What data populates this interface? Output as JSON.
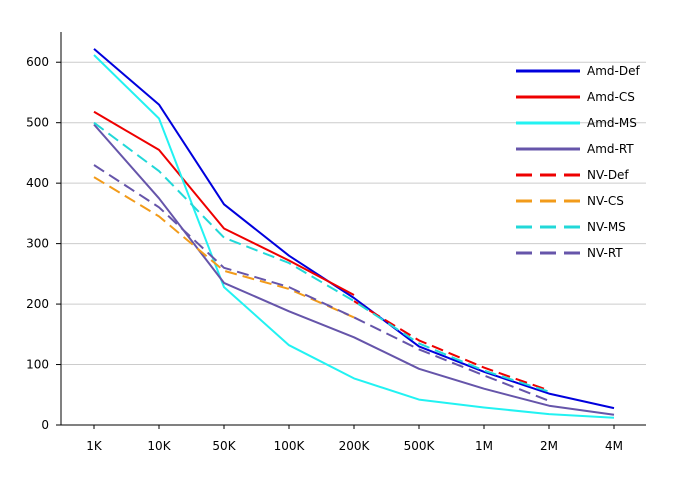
{
  "chart_data": {
    "type": "line",
    "categories": [
      "1K",
      "10K",
      "50K",
      "100K",
      "200K",
      "500K",
      "1M",
      "2M",
      "4M"
    ],
    "ylim": [
      0,
      650
    ],
    "yticks": [
      0,
      100,
      200,
      300,
      400,
      500,
      600
    ],
    "grid": true,
    "legend_position": "top-right",
    "series": [
      {
        "name": "Amd-Def",
        "color": "#0000dd",
        "dash": false,
        "values": [
          622,
          530,
          365,
          280,
          210,
          130,
          88,
          52,
          28
        ]
      },
      {
        "name": "Amd-CS",
        "color": "#ee0000",
        "dash": false,
        "values": [
          518,
          455,
          325,
          272,
          215,
          null,
          null,
          null,
          null
        ]
      },
      {
        "name": "Amd-MS",
        "color": "#22f2f2",
        "dash": false,
        "values": [
          612,
          507,
          228,
          132,
          77,
          42,
          29,
          18,
          12
        ]
      },
      {
        "name": "Amd-RT",
        "color": "#6655aa",
        "dash": false,
        "values": [
          497,
          375,
          235,
          188,
          145,
          93,
          60,
          32,
          17
        ]
      },
      {
        "name": "NV-Def",
        "color": "#ee0000",
        "dash": true,
        "values": [
          null,
          null,
          null,
          null,
          205,
          140,
          95,
          57,
          null
        ]
      },
      {
        "name": "NV-CS",
        "color": "#f29b1a",
        "dash": true,
        "values": [
          410,
          345,
          255,
          225,
          178,
          null,
          null,
          null,
          null
        ]
      },
      {
        "name": "NV-MS",
        "color": "#22d8d8",
        "dash": true,
        "values": [
          500,
          420,
          310,
          268,
          205,
          135,
          90,
          55,
          null
        ]
      },
      {
        "name": "NV-RT",
        "color": "#6655aa",
        "dash": true,
        "values": [
          430,
          360,
          260,
          228,
          178,
          125,
          82,
          40,
          null
        ]
      }
    ]
  }
}
